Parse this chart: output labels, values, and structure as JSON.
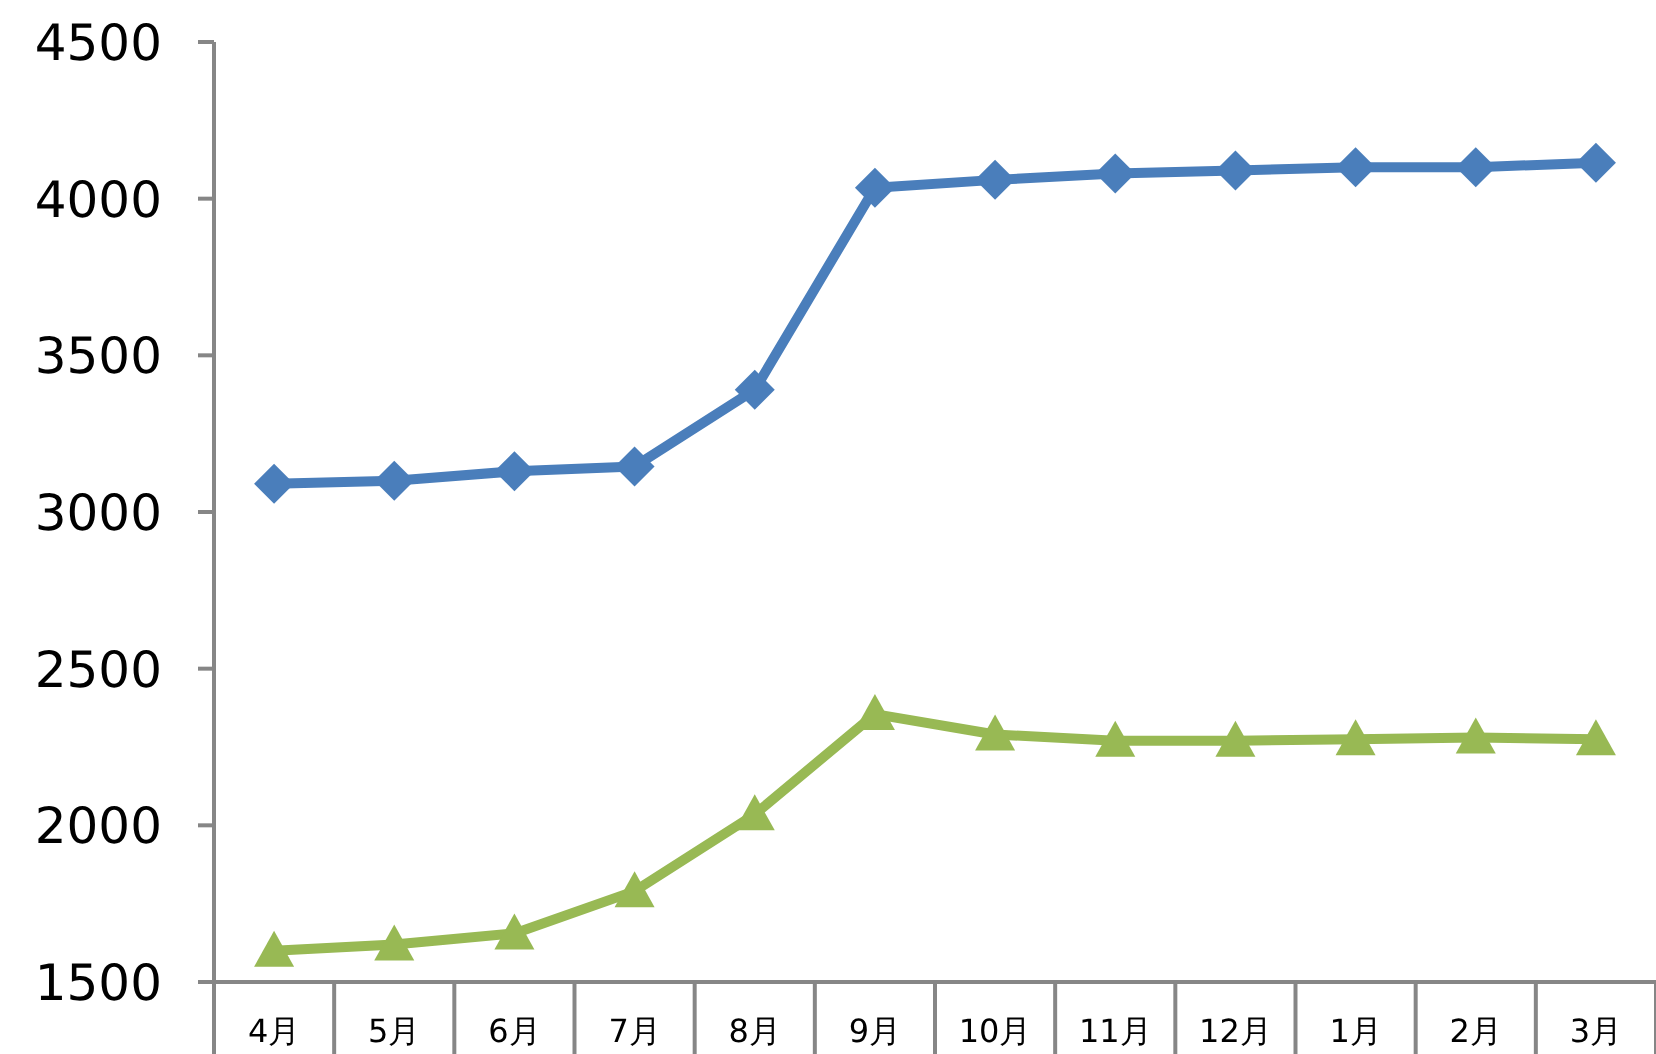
{
  "chart_data": {
    "type": "line",
    "categories": [
      "4月",
      "5月",
      "6月",
      "7月",
      "8月",
      "9月",
      "10月",
      "11月",
      "12月",
      "1月",
      "2月",
      "3月"
    ],
    "series": [
      {
        "color": "#4a7ebb",
        "marker": "diamond",
        "values": [
          3090,
          3100,
          3130,
          3145,
          3390,
          4035,
          4060,
          4080,
          4090,
          4100,
          4100,
          4115
        ]
      },
      {
        "color": "#98b954",
        "marker": "triangle",
        "values": [
          1600,
          1620,
          1655,
          1790,
          2035,
          2355,
          2290,
          2270,
          2270,
          2275,
          2280,
          2275
        ]
      }
    ],
    "ylim": [
      1500,
      4500
    ],
    "yticks": [
      1500,
      2000,
      2500,
      3000,
      3500,
      4000,
      4500
    ],
    "grid": false
  }
}
